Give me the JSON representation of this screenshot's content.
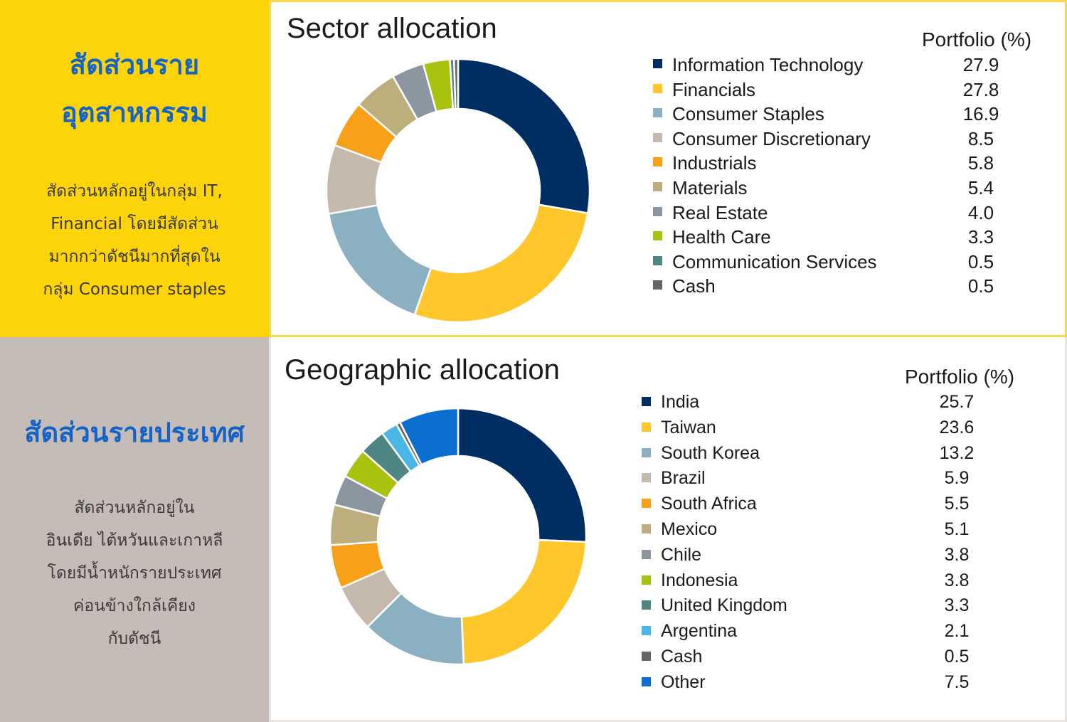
{
  "sector_panel": {
    "side_title_lines": [
      "สัดส่วนราย",
      "อุตสาหกรรม"
    ],
    "side_desc_lines": [
      "สัดส่วนหลักอยู่ในกลุ่ม IT,",
      "Financial โดยมีสัดส่วน",
      "มากกว่าดัชนีมากที่สุดใน",
      "กลุ่ม Consumer staples"
    ]
  },
  "geo_panel": {
    "side_title_lines": [
      "สัดส่วนรายประเทศ"
    ],
    "side_desc_lines": [
      "สัดส่วนหลักอยู่ใน",
      "อินเดีย ไต้หวันและเกาหลี",
      "โดยมีน้ำหนักรายประเทศ",
      "ค่อนข้างใกล้เคียง",
      "กับดัชนี"
    ]
  },
  "chart_data": [
    {
      "type": "pie",
      "title": "Sector allocation",
      "value_header": "Portfolio (%)",
      "categories": [
        "Information Technology",
        "Financials",
        "Consumer Staples",
        "Consumer Discretionary",
        "Industrials",
        "Materials",
        "Real Estate",
        "Health Care",
        "Communication Services",
        "Cash"
      ],
      "values": [
        27.9,
        27.8,
        16.9,
        8.5,
        5.8,
        5.4,
        4.0,
        3.3,
        0.5,
        0.5
      ],
      "value_labels": [
        "27.9",
        "27.8",
        "16.9",
        "8.5",
        "5.8",
        "5.4",
        "4.0",
        "3.3",
        "0.5",
        "0.5"
      ],
      "colors": [
        "#002D62",
        "#FFC72C",
        "#8AB0C2",
        "#C4B9AC",
        "#F9A01B",
        "#BDAE7E",
        "#8B96A1",
        "#A9C20D",
        "#4F8583",
        "#646569"
      ],
      "legend": "right"
    },
    {
      "type": "pie",
      "title": "Geographic allocation",
      "value_header": "Portfolio (%)",
      "categories": [
        "India",
        "Taiwan",
        "South Korea",
        "Brazil",
        "South Africa",
        "Mexico",
        "Chile",
        "Indonesia",
        "United Kingdom",
        "Argentina",
        "Cash",
        "Other"
      ],
      "values": [
        25.7,
        23.6,
        13.2,
        5.9,
        5.5,
        5.1,
        3.8,
        3.8,
        3.3,
        2.1,
        0.5,
        7.5
      ],
      "value_labels": [
        "25.7",
        "23.6",
        "13.2",
        "5.9",
        "5.5",
        "5.1",
        "3.8",
        "3.8",
        "3.3",
        "2.1",
        "0.5",
        "7.5"
      ],
      "colors": [
        "#002D62",
        "#FFC72C",
        "#8AB0C2",
        "#C4B9AC",
        "#F9A01B",
        "#BDAE7E",
        "#8B96A1",
        "#A9C20D",
        "#4F8583",
        "#48B7E6",
        "#646569",
        "#0B6ED1"
      ],
      "legend": "right"
    }
  ]
}
